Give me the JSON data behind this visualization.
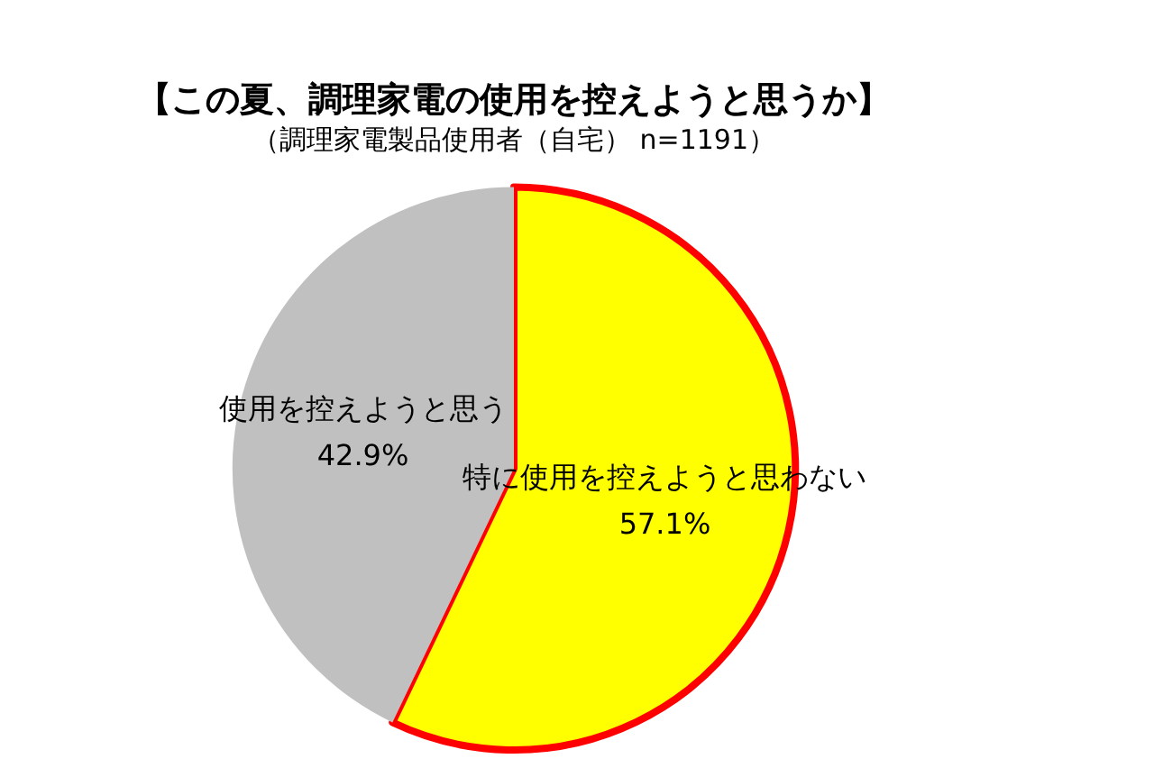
{
  "chart_data": {
    "type": "pie",
    "title": "【この夏、調理家電の使用を控えようと思うか】",
    "subtitle": "（調理家電製品使用者（自宅） n=1191）",
    "categories": [
      "特に使用を控えようと思わない",
      "使用を控えようと思う"
    ],
    "values": [
      57.1,
      42.9
    ],
    "colors": [
      "#ffff00",
      "#c0c0c0"
    ],
    "value_labels": [
      "57.1%",
      "42.9%"
    ],
    "legend": false
  }
}
